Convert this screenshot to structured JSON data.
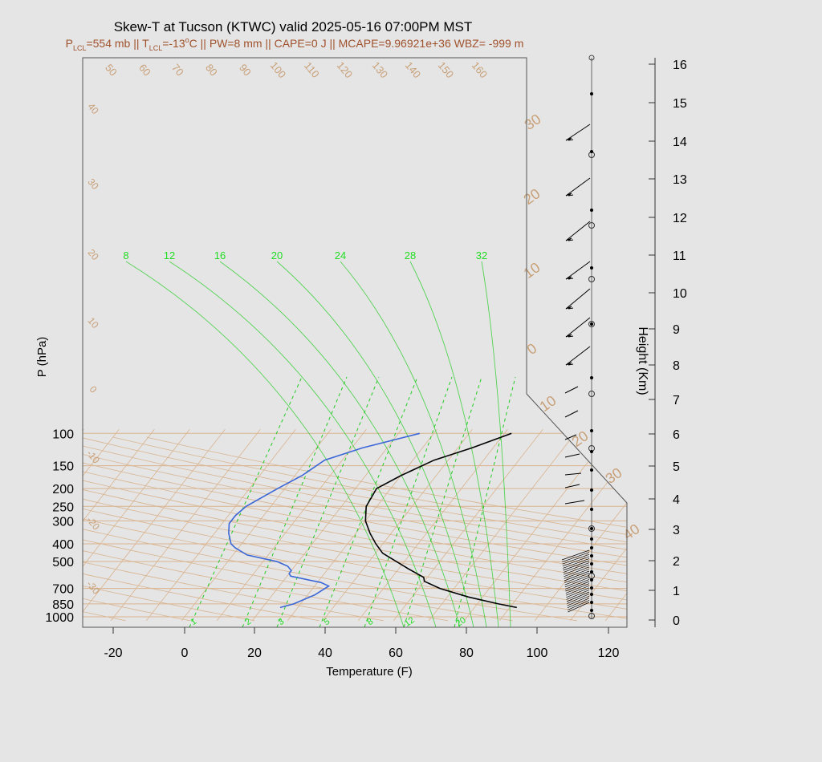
{
  "chart_data": {
    "type": "line",
    "title": "Skew-T at Tucson (KTWC) valid 2025-05-16 07:00PM MST",
    "subtitle": {
      "p_lcl_label": "P",
      "p_lcl_sub": "LCL",
      "p_lcl_value": "=554 mb || T",
      "t_lcl_sub": "LCL",
      "t_lcl_value": "=-13",
      "deg": "o",
      "rest": "C || PW=8 mm || CAPE=0 J || MCAPE=9.96921e+36 WBZ= -999 m"
    },
    "xlabel": "Temperature (F)",
    "ylabel": "P (hPa)",
    "y2label": "Height (Km)",
    "x_ticks": [
      "-20",
      "0",
      "20",
      "40",
      "60",
      "80",
      "100",
      "120"
    ],
    "y_ticks": [
      "100",
      "150",
      "200",
      "250",
      "300",
      "400",
      "500",
      "700",
      "850",
      "1000"
    ],
    "height_ticks": [
      "0",
      "1",
      "2",
      "3",
      "4",
      "5",
      "6",
      "7",
      "8",
      "9",
      "10",
      "11",
      "12",
      "13",
      "14",
      "15",
      "16"
    ],
    "isotherm_labels_top": [
      "50",
      "60",
      "70",
      "80",
      "90",
      "100",
      "110",
      "120",
      "130",
      "140",
      "150",
      "160"
    ],
    "isotherm_labels_left": [
      "40",
      "30",
      "20",
      "10",
      "0",
      "-10",
      "-20",
      "-30"
    ],
    "isotherm_labels_right": [
      "30",
      "20",
      "10",
      "0",
      "10",
      "20",
      "30",
      "40"
    ],
    "adiabat_labels": [
      "8",
      "12",
      "16",
      "20",
      "24",
      "28",
      "32"
    ],
    "mixing_ratio_labels": [
      "1",
      "2",
      "3",
      "5",
      "8",
      "12",
      "20"
    ],
    "temperature_profile": [
      {
        "p": 890,
        "t": 92
      },
      {
        "p": 850,
        "t": 86
      },
      {
        "p": 780,
        "t": 76
      },
      {
        "p": 700,
        "t": 66
      },
      {
        "p": 640,
        "t": 60
      },
      {
        "p": 610,
        "t": 59
      },
      {
        "p": 550,
        "t": 53
      },
      {
        "p": 450,
        "t": 42
      },
      {
        "p": 400,
        "t": 38
      },
      {
        "p": 350,
        "t": 34
      },
      {
        "p": 300,
        "t": 30
      },
      {
        "p": 250,
        "t": 27
      },
      {
        "p": 200,
        "t": 26
      },
      {
        "p": 170,
        "t": 30
      },
      {
        "p": 140,
        "t": 36
      },
      {
        "p": 120,
        "t": 44
      },
      {
        "p": 100,
        "t": 52
      }
    ],
    "dewpoint_profile": [
      {
        "p": 890,
        "t": 25
      },
      {
        "p": 850,
        "t": 28
      },
      {
        "p": 760,
        "t": 32
      },
      {
        "p": 680,
        "t": 34
      },
      {
        "p": 650,
        "t": 31
      },
      {
        "p": 600,
        "t": 21
      },
      {
        "p": 580,
        "t": 20
      },
      {
        "p": 560,
        "t": 20
      },
      {
        "p": 530,
        "t": 18
      },
      {
        "p": 500,
        "t": 14
      },
      {
        "p": 460,
        "t": 4
      },
      {
        "p": 420,
        "t": -1
      },
      {
        "p": 400,
        "t": -3
      },
      {
        "p": 350,
        "t": -6
      },
      {
        "p": 310,
        "t": -8
      },
      {
        "p": 280,
        "t": -8
      },
      {
        "p": 250,
        "t": -7
      },
      {
        "p": 200,
        "t": -2
      },
      {
        "p": 170,
        "t": 2
      },
      {
        "p": 140,
        "t": 5
      },
      {
        "p": 120,
        "t": 13
      },
      {
        "p": 100,
        "t": 26
      }
    ],
    "colors": {
      "background": "#e5e5e5",
      "temperature": "#000000",
      "dewpoint": "#3b66d8",
      "isotherm": "#d9b48f",
      "dry_adiabat": "#d9b48f",
      "moist_adiabat": "#22cc22",
      "subtitle": "#a0522d"
    }
  }
}
